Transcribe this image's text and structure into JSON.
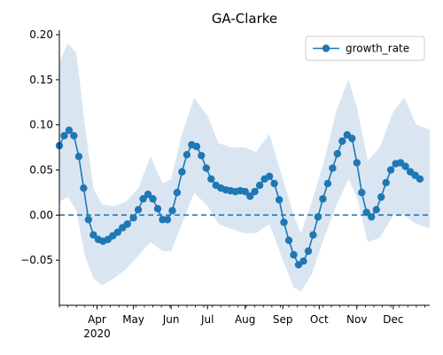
{
  "chart_data": {
    "type": "line",
    "title": "GA-Clarke",
    "xlabel": "",
    "ylabel": "",
    "x_axis": {
      "kind": "date",
      "range": [
        "2020-03-01",
        "2020-12-31"
      ],
      "month_ticks": [
        {
          "date": "2020-04-01",
          "label": "Apr"
        },
        {
          "date": "2020-05-01",
          "label": "May"
        },
        {
          "date": "2020-06-01",
          "label": "Jun"
        },
        {
          "date": "2020-07-01",
          "label": "Jul"
        },
        {
          "date": "2020-08-01",
          "label": "Aug"
        },
        {
          "date": "2020-09-01",
          "label": "Sep"
        },
        {
          "date": "2020-10-01",
          "label": "Oct"
        },
        {
          "date": "2020-11-01",
          "label": "Nov"
        },
        {
          "date": "2020-12-01",
          "label": "Dec"
        }
      ],
      "year_label": "2020"
    },
    "y_axis": {
      "range": [
        -0.1,
        0.205
      ],
      "ticks": [
        -0.05,
        0.0,
        0.05,
        0.1,
        0.15,
        0.2
      ],
      "tick_labels": [
        "−0.05",
        "0.00",
        "0.05",
        "0.10",
        "0.15",
        "0.20"
      ]
    },
    "reference_line": {
      "y": 0.0,
      "style": "dashed"
    },
    "legend": {
      "position": "top-right",
      "entries": [
        "growth_rate"
      ]
    },
    "colors": {
      "series": "#1f77b4",
      "band": "#d9e6f2"
    },
    "grid": false,
    "series": [
      {
        "name": "growth_rate",
        "marker": "circle",
        "points": [
          [
            "2020-03-01",
            0.077
          ],
          [
            "2020-03-05",
            0.088
          ],
          [
            "2020-03-09",
            0.094
          ],
          [
            "2020-03-13",
            0.088
          ],
          [
            "2020-03-17",
            0.065
          ],
          [
            "2020-03-21",
            0.03
          ],
          [
            "2020-03-25",
            -0.005
          ],
          [
            "2020-03-29",
            -0.022
          ],
          [
            "2020-04-02",
            -0.027
          ],
          [
            "2020-04-06",
            -0.029
          ],
          [
            "2020-04-10",
            -0.027
          ],
          [
            "2020-04-14",
            -0.023
          ],
          [
            "2020-04-18",
            -0.019
          ],
          [
            "2020-04-22",
            -0.014
          ],
          [
            "2020-04-26",
            -0.01
          ],
          [
            "2020-05-01",
            -0.003
          ],
          [
            "2020-05-05",
            0.006
          ],
          [
            "2020-05-09",
            0.018
          ],
          [
            "2020-05-13",
            0.023
          ],
          [
            "2020-05-17",
            0.018
          ],
          [
            "2020-05-21",
            0.007
          ],
          [
            "2020-05-25",
            -0.005
          ],
          [
            "2020-05-29",
            -0.005
          ],
          [
            "2020-06-02",
            0.005
          ],
          [
            "2020-06-06",
            0.025
          ],
          [
            "2020-06-10",
            0.048
          ],
          [
            "2020-06-14",
            0.067
          ],
          [
            "2020-06-18",
            0.078
          ],
          [
            "2020-06-22",
            0.076
          ],
          [
            "2020-06-26",
            0.066
          ],
          [
            "2020-06-30",
            0.052
          ],
          [
            "2020-07-04",
            0.04
          ],
          [
            "2020-07-08",
            0.033
          ],
          [
            "2020-07-12",
            0.03
          ],
          [
            "2020-07-16",
            0.028
          ],
          [
            "2020-07-20",
            0.027
          ],
          [
            "2020-07-24",
            0.026
          ],
          [
            "2020-07-28",
            0.027
          ],
          [
            "2020-08-01",
            0.026
          ],
          [
            "2020-08-05",
            0.021
          ],
          [
            "2020-08-09",
            0.026
          ],
          [
            "2020-08-13",
            0.033
          ],
          [
            "2020-08-17",
            0.04
          ],
          [
            "2020-08-21",
            0.043
          ],
          [
            "2020-08-25",
            0.035
          ],
          [
            "2020-08-29",
            0.017
          ],
          [
            "2020-09-02",
            -0.008
          ],
          [
            "2020-09-06",
            -0.028
          ],
          [
            "2020-09-10",
            -0.044
          ],
          [
            "2020-09-14",
            -0.055
          ],
          [
            "2020-09-18",
            -0.051
          ],
          [
            "2020-09-22",
            -0.04
          ],
          [
            "2020-09-26",
            -0.022
          ],
          [
            "2020-09-30",
            -0.002
          ],
          [
            "2020-10-04",
            0.018
          ],
          [
            "2020-10-08",
            0.035
          ],
          [
            "2020-10-12",
            0.052
          ],
          [
            "2020-10-16",
            0.068
          ],
          [
            "2020-10-20",
            0.082
          ],
          [
            "2020-10-24",
            0.089
          ],
          [
            "2020-10-28",
            0.085
          ],
          [
            "2020-11-01",
            0.058
          ],
          [
            "2020-11-05",
            0.025
          ],
          [
            "2020-11-09",
            0.003
          ],
          [
            "2020-11-13",
            -0.002
          ],
          [
            "2020-11-17",
            0.006
          ],
          [
            "2020-11-21",
            0.02
          ],
          [
            "2020-11-25",
            0.036
          ],
          [
            "2020-11-29",
            0.05
          ],
          [
            "2020-12-03",
            0.057
          ],
          [
            "2020-12-07",
            0.058
          ],
          [
            "2020-12-11",
            0.054
          ],
          [
            "2020-12-15",
            0.048
          ],
          [
            "2020-12-19",
            0.044
          ],
          [
            "2020-12-23",
            0.04
          ]
        ],
        "band": [
          [
            "2020-03-01",
            0.015,
            0.17
          ],
          [
            "2020-03-08",
            0.02,
            0.19
          ],
          [
            "2020-03-15",
            0.005,
            0.18
          ],
          [
            "2020-03-22",
            -0.045,
            0.1
          ],
          [
            "2020-03-29",
            -0.07,
            0.03
          ],
          [
            "2020-04-05",
            -0.078,
            0.012
          ],
          [
            "2020-04-15",
            -0.07,
            0.01
          ],
          [
            "2020-04-25",
            -0.06,
            0.015
          ],
          [
            "2020-05-05",
            -0.045,
            0.03
          ],
          [
            "2020-05-15",
            -0.03,
            0.065
          ],
          [
            "2020-05-25",
            -0.04,
            0.035
          ],
          [
            "2020-06-01",
            -0.04,
            0.04
          ],
          [
            "2020-06-10",
            -0.01,
            0.09
          ],
          [
            "2020-06-20",
            0.025,
            0.13
          ],
          [
            "2020-07-01",
            0.01,
            0.11
          ],
          [
            "2020-07-10",
            -0.01,
            0.08
          ],
          [
            "2020-07-20",
            -0.015,
            0.075
          ],
          [
            "2020-08-01",
            -0.02,
            0.075
          ],
          [
            "2020-08-10",
            -0.02,
            0.07
          ],
          [
            "2020-08-21",
            -0.01,
            0.09
          ],
          [
            "2020-09-01",
            -0.05,
            0.04
          ],
          [
            "2020-09-10",
            -0.08,
            0.0
          ],
          [
            "2020-09-16",
            -0.085,
            -0.02
          ],
          [
            "2020-09-25",
            -0.065,
            0.015
          ],
          [
            "2020-10-05",
            -0.025,
            0.06
          ],
          [
            "2020-10-15",
            0.01,
            0.115
          ],
          [
            "2020-10-25",
            0.04,
            0.15
          ],
          [
            "2020-11-01",
            0.02,
            0.12
          ],
          [
            "2020-11-10",
            -0.03,
            0.06
          ],
          [
            "2020-11-20",
            -0.025,
            0.075
          ],
          [
            "2020-12-01",
            0.0,
            0.115
          ],
          [
            "2020-12-10",
            0.0,
            0.13
          ],
          [
            "2020-12-20",
            -0.01,
            0.1
          ],
          [
            "2020-12-31",
            -0.015,
            0.095
          ]
        ]
      }
    ]
  }
}
